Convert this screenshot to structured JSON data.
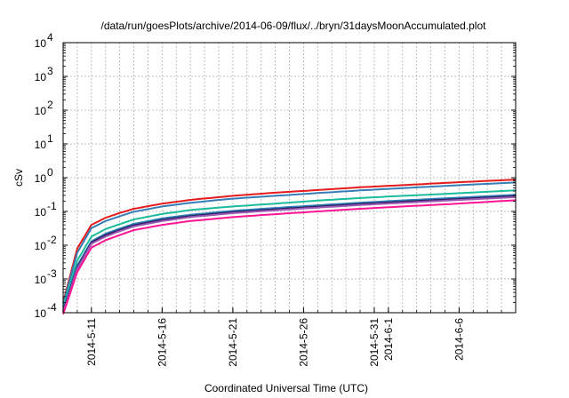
{
  "chart_data": {
    "type": "line",
    "title": "/data/run/goesPlots/archive/2014-06-09/flux/../bryn/31daysMoonAccumulated.plot",
    "xlabel": "Coordinated Universal Time (UTC)",
    "ylabel": "cSv",
    "y_scale": "log",
    "ylim": [
      0.0001,
      10000
    ],
    "xlim": [
      "2014-05-09",
      "2014-06-10"
    ],
    "x_ticks": [
      "2014-5-11",
      "2014-5-16",
      "2014-5-21",
      "2014-5-26",
      "2014-5-31",
      "2014-6-1",
      "2014-6-6"
    ],
    "y_ticks": [
      {
        "value": 0.0001,
        "base": "10",
        "exp": "-4"
      },
      {
        "value": 0.001,
        "base": "10",
        "exp": "-3"
      },
      {
        "value": 0.01,
        "base": "10",
        "exp": "-2"
      },
      {
        "value": 0.1,
        "base": "10",
        "exp": "-1"
      },
      {
        "value": 1,
        "base": "10",
        "exp": "0"
      },
      {
        "value": 10,
        "base": "10",
        "exp": "1"
      },
      {
        "value": 100,
        "base": "10",
        "exp": "2"
      },
      {
        "value": 1000,
        "base": "10",
        "exp": "3"
      },
      {
        "value": 10000,
        "base": "10",
        "exp": "4"
      }
    ],
    "grid": true,
    "x": [
      "2014-05-09",
      "2014-05-10",
      "2014-05-11",
      "2014-05-12",
      "2014-05-13",
      "2014-05-14",
      "2014-05-16",
      "2014-05-18",
      "2014-05-21",
      "2014-05-24",
      "2014-05-27",
      "2014-05-30",
      "2014-06-02",
      "2014-06-05",
      "2014-06-10"
    ],
    "series": [
      {
        "color": "#e41a1c",
        "values": [
          0.0002,
          0.008,
          0.04,
          0.065,
          0.09,
          0.12,
          0.17,
          0.22,
          0.29,
          0.36,
          0.43,
          0.52,
          0.6,
          0.7,
          0.88
        ]
      },
      {
        "color": "#377eb8",
        "values": [
          0.00018,
          0.006,
          0.032,
          0.052,
          0.072,
          0.098,
          0.14,
          0.18,
          0.24,
          0.29,
          0.35,
          0.42,
          0.49,
          0.57,
          0.72
        ]
      },
      {
        "color": "#1abc9c",
        "values": [
          0.00015,
          0.0035,
          0.018,
          0.03,
          0.042,
          0.058,
          0.084,
          0.11,
          0.14,
          0.17,
          0.21,
          0.25,
          0.29,
          0.33,
          0.42
        ]
      },
      {
        "color": "#2c7fb8",
        "values": [
          0.00012,
          0.0025,
          0.013,
          0.022,
          0.031,
          0.043,
          0.062,
          0.08,
          0.104,
          0.127,
          0.152,
          0.182,
          0.212,
          0.245,
          0.31
        ]
      },
      {
        "color": "#2d1d5e",
        "values": [
          0.00011,
          0.0022,
          0.012,
          0.02,
          0.028,
          0.039,
          0.056,
          0.073,
          0.095,
          0.116,
          0.139,
          0.166,
          0.194,
          0.224,
          0.285
        ]
      },
      {
        "color": "#9b59b6",
        "values": [
          0.0001,
          0.002,
          0.011,
          0.018,
          0.026,
          0.036,
          0.052,
          0.068,
          0.089,
          0.108,
          0.13,
          0.155,
          0.18,
          0.208,
          0.265
        ]
      },
      {
        "color": "#ff1493",
        "values": [
          9e-05,
          0.0016,
          0.0085,
          0.014,
          0.02,
          0.028,
          0.04,
          0.052,
          0.068,
          0.083,
          0.1,
          0.12,
          0.14,
          0.162,
          0.215
        ]
      }
    ]
  }
}
